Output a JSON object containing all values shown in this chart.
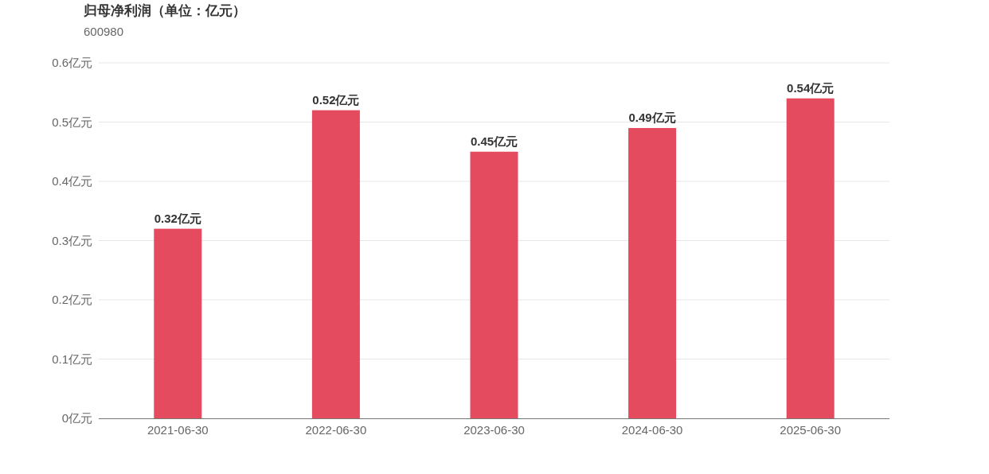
{
  "chart_data": {
    "type": "bar",
    "title": "归母净利润（单位：亿元）",
    "subtitle": "600980",
    "categories": [
      "2021-06-30",
      "2022-06-30",
      "2023-06-30",
      "2024-06-30",
      "2025-06-30"
    ],
    "values": [
      0.32,
      0.52,
      0.45,
      0.49,
      0.54
    ],
    "value_labels": [
      "0.32亿元",
      "0.52亿元",
      "0.45亿元",
      "0.49亿元",
      "0.54亿元"
    ],
    "color": "#e54b5e",
    "ylim": [
      0,
      0.6
    ],
    "yticks": [
      {
        "value": 0,
        "label": "0亿元"
      },
      {
        "value": 0.1,
        "label": "0.1亿元"
      },
      {
        "value": 0.2,
        "label": "0.2亿元"
      },
      {
        "value": 0.3,
        "label": "0.3亿元"
      },
      {
        "value": 0.4,
        "label": "0.4亿元"
      },
      {
        "value": 0.5,
        "label": "0.5亿元"
      },
      {
        "value": 0.6,
        "label": "0.6亿元"
      }
    ],
    "grid": "y"
  }
}
